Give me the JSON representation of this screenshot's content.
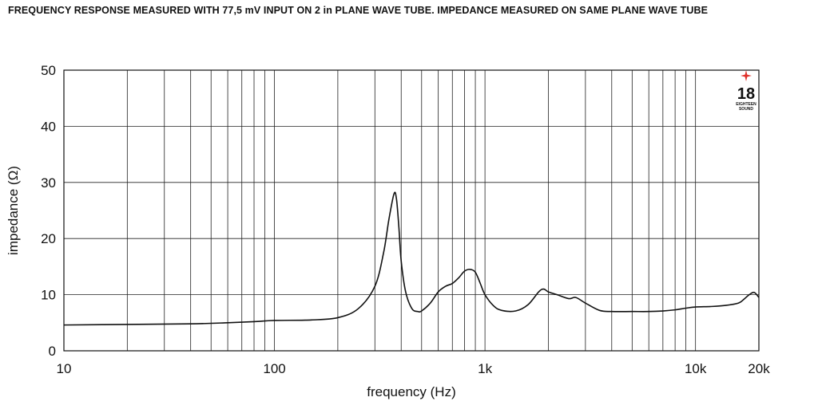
{
  "title": "FREQUENCY RESPONSE MEASURED WITH 77,5 mV INPUT ON 2 in PLANE WAVE TUBE. IMPEDANCE MEASURED ON SAME PLANE WAVE TUBE",
  "logo": {
    "number": "18",
    "line1": "EIGHTEEN",
    "line2": "SOUND",
    "star_color": "#e0302a"
  },
  "chart_data": {
    "type": "line",
    "xlabel": "frequency (Hz)",
    "ylabel": "impedance (Ω)",
    "xscale": "log",
    "xlim": [
      10,
      20000
    ],
    "ylim": [
      0,
      50
    ],
    "grid": true,
    "x_tick_labels": [
      {
        "value": 10,
        "label": "10"
      },
      {
        "value": 100,
        "label": "100"
      },
      {
        "value": 1000,
        "label": "1k"
      },
      {
        "value": 10000,
        "label": "10k"
      },
      {
        "value": 20000,
        "label": "20k"
      }
    ],
    "y_ticks": [
      0,
      10,
      20,
      30,
      40,
      50
    ],
    "series": [
      {
        "line_color": "#111111",
        "x": [
          10,
          20,
          40,
          60,
          80,
          100,
          150,
          200,
          250,
          300,
          330,
          350,
          370,
          380,
          390,
          400,
          420,
          450,
          480,
          500,
          550,
          600,
          650,
          700,
          750,
          800,
          850,
          900,
          950,
          1000,
          1100,
          1200,
          1400,
          1600,
          1800,
          1900,
          2000,
          2200,
          2500,
          2700,
          3000,
          3500,
          4000,
          5000,
          6000,
          7000,
          8000,
          9000,
          10000,
          12000,
          14000,
          16000,
          17000,
          18000,
          19000,
          20000
        ],
        "y": [
          4.6,
          4.7,
          4.8,
          5.0,
          5.2,
          5.4,
          5.5,
          5.9,
          7.5,
          11.5,
          17.5,
          23.5,
          28.0,
          27.0,
          22.0,
          16.0,
          10.5,
          7.5,
          7.0,
          7.1,
          8.5,
          10.5,
          11.5,
          12.0,
          13.0,
          14.2,
          14.5,
          14.0,
          12.0,
          10.0,
          8.0,
          7.2,
          7.1,
          8.2,
          10.5,
          11.0,
          10.5,
          10.0,
          9.3,
          9.5,
          8.5,
          7.2,
          7.0,
          7.0,
          7.0,
          7.1,
          7.3,
          7.6,
          7.8,
          7.9,
          8.1,
          8.5,
          9.2,
          10.0,
          10.4,
          9.5
        ]
      }
    ]
  }
}
